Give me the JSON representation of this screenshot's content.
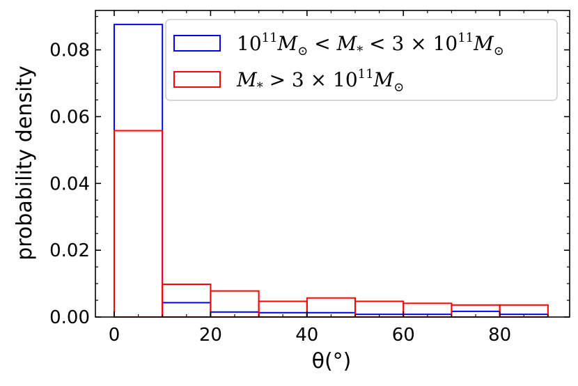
{
  "chart_data": {
    "type": "bar",
    "histogram": true,
    "bin_edges": [
      0,
      10,
      20,
      30,
      40,
      50,
      60,
      70,
      80,
      90
    ],
    "series": [
      {
        "name": "10^11 M⊙ < M* < 3 × 10^11 M⊙",
        "color": "#0000ff",
        "values": [
          0.0876,
          0.0043,
          0.0015,
          0.0013,
          0.0013,
          0.0008,
          0.0008,
          0.0017,
          0.0008
        ]
      },
      {
        "name": "M* > 3 × 10^11 M⊙",
        "color": "#ff0000",
        "values": [
          0.0558,
          0.0098,
          0.0078,
          0.0047,
          0.0057,
          0.0047,
          0.0041,
          0.0036,
          0.0036
        ]
      }
    ],
    "xlabel": "θ(°)",
    "ylabel": "probability density",
    "xlim": [
      -3.9,
      94.5
    ],
    "ylim": [
      0,
      0.0918
    ],
    "xticks": [
      0,
      20,
      40,
      60,
      80
    ],
    "xtick_labels": [
      "0",
      "20",
      "40",
      "60",
      "80"
    ],
    "yticks": [
      0,
      0.02,
      0.04,
      0.06,
      0.08
    ],
    "ytick_labels": [
      "0.00",
      "0.02",
      "0.04",
      "0.06",
      "0.08"
    ],
    "grid": false,
    "legend_position": "top-right"
  }
}
